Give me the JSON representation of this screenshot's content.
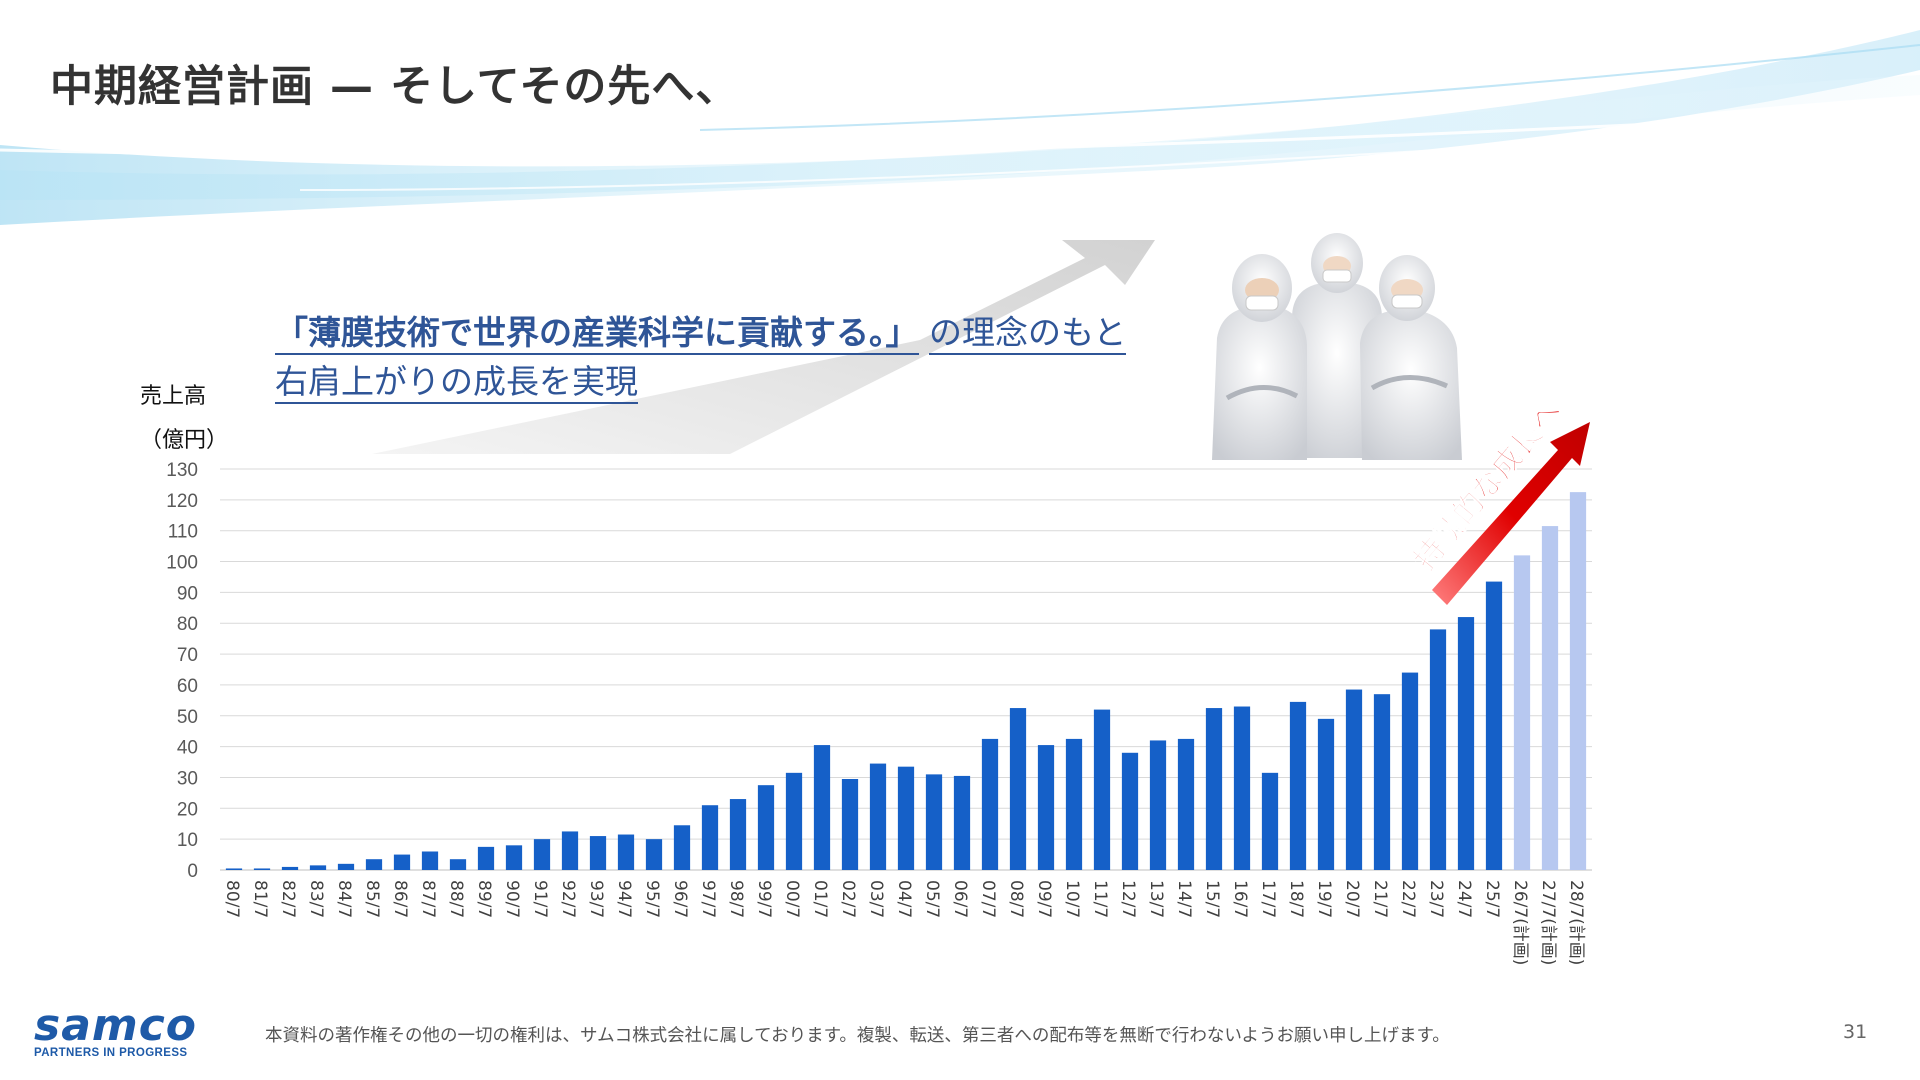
{
  "slide": {
    "title": "中期経営計画 — そしてその先へ、",
    "statement": {
      "quote": "「薄膜技術で世界の産業科学に貢献する。」",
      "after_quote": "の理念のもと",
      "line2": "右肩上がりの成長を実現"
    },
    "growth_label": "持続的な成長へ",
    "footer_note": "本資料の著作権その他の一切の権利は、サムコ株式会社に属しております。複製、転送、第三者への配布等を無断で行わないようお願い申し上げます。",
    "page_number": "31",
    "logo": {
      "wordmark": "samco",
      "tagline": "PARTNERS IN PROGRESS"
    },
    "photo": {
      "icon": "cleanroom-staff-photo"
    }
  },
  "chart_data": {
    "type": "bar",
    "title": "",
    "ylabel": "売上高",
    "yunit": "（億円）",
    "ylim": [
      0,
      130
    ],
    "yticks": [
      0,
      10,
      20,
      30,
      40,
      50,
      60,
      70,
      80,
      90,
      100,
      110,
      120,
      130
    ],
    "grid": true,
    "categories": [
      "80/7",
      "81/7",
      "82/7",
      "83/7",
      "84/7",
      "85/7",
      "86/7",
      "87/7",
      "88/7",
      "89/7",
      "90/7",
      "91/7",
      "92/7",
      "93/7",
      "94/7",
      "95/7",
      "96/7",
      "97/7",
      "98/7",
      "99/7",
      "00/7",
      "01/7",
      "02/7",
      "03/7",
      "04/7",
      "05/7",
      "06/7",
      "07/7",
      "08/7",
      "09/7",
      "10/7",
      "11/7",
      "12/7",
      "13/7",
      "14/7",
      "15/7",
      "16/7",
      "17/7",
      "18/7",
      "19/7",
      "20/7",
      "21/7",
      "22/7",
      "23/7",
      "24/7",
      "25/7",
      "26/7(計画)",
      "27/7(計画)",
      "28/7(計画)"
    ],
    "values": [
      0.5,
      0.5,
      1,
      1.5,
      2,
      3.5,
      5,
      6,
      3.5,
      7.5,
      8,
      10,
      12.5,
      11,
      11.5,
      10,
      14.5,
      21,
      23,
      27.5,
      31.5,
      40.5,
      29.5,
      34.5,
      33.5,
      31,
      30.5,
      42.5,
      52.5,
      40.5,
      42.5,
      52,
      38,
      42,
      42.5,
      52.5,
      53,
      31.5,
      54.5,
      49,
      58.5,
      57,
      64,
      78,
      82,
      93.5,
      102,
      111.5,
      122.5
    ],
    "series_colors": {
      "actual": "#1560c8",
      "plan": "#b7c8f0"
    },
    "plan_from_index": 46
  }
}
